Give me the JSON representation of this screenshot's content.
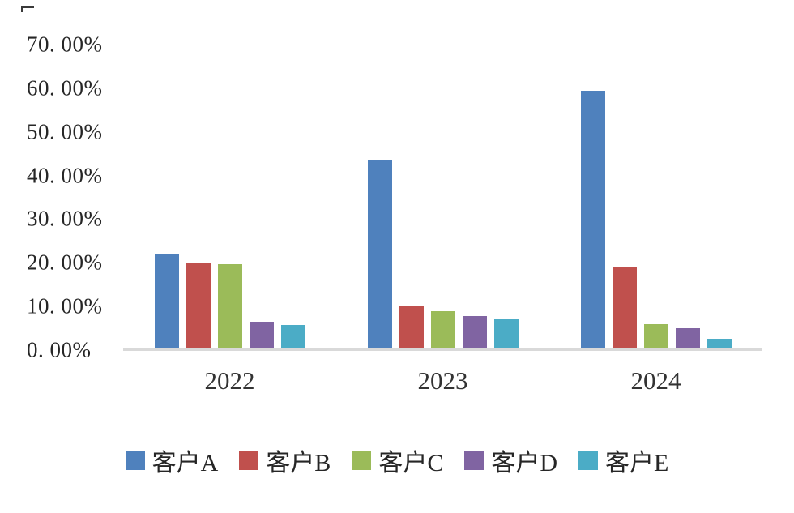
{
  "chart_data": {
    "type": "bar",
    "title": "",
    "xlabel": "",
    "ylabel": "",
    "categories": [
      "2022",
      "2023",
      "2024"
    ],
    "series": [
      {
        "name": "客户A",
        "color": "#4f81bd",
        "values": [
          22.0,
          43.5,
          59.5
        ]
      },
      {
        "name": "客户B",
        "color": "#c0504d",
        "values": [
          20.0,
          10.0,
          19.0
        ]
      },
      {
        "name": "客户C",
        "color": "#9bbb59",
        "values": [
          19.7,
          9.0,
          6.0
        ]
      },
      {
        "name": "客户D",
        "color": "#8064a2",
        "values": [
          6.5,
          7.8,
          5.0
        ]
      },
      {
        "name": "客户E",
        "color": "#4bacc6",
        "values": [
          5.8,
          7.0,
          2.6
        ]
      }
    ],
    "ylim": [
      0,
      70
    ],
    "ytick_step": 10,
    "ytick_labels_top_to_bottom": [
      "70. 00%",
      "60. 00%",
      "50. 00%",
      "40. 00%",
      "30. 00%",
      "20. 00%",
      "10. 00%",
      "0. 00%"
    ],
    "grid": false,
    "legend_position": "bottom",
    "axis_line_color": "#d9d9d9",
    "text_color": "#262626",
    "background": "#ffffff"
  }
}
